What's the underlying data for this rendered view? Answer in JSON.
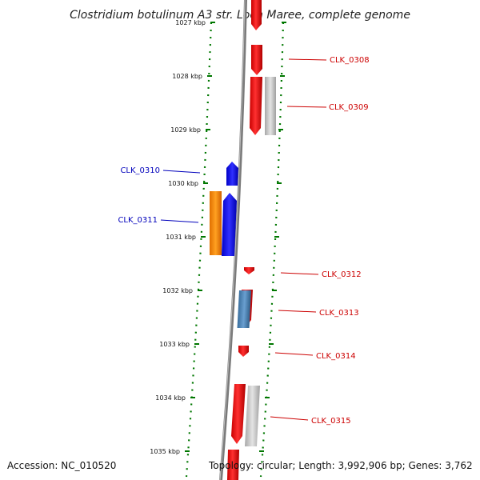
{
  "title": "Clostridium botulinum A3 str. Loch Maree, complete genome",
  "rulers": [
    "1027 kbp",
    "1028 kbp",
    "1029 kbp",
    "1030 kbp",
    "1031 kbp",
    "1032 kbp",
    "1033 kbp",
    "1034 kbp",
    "1035 kbp"
  ],
  "genes": [
    {
      "id": "CLK_0308",
      "color": "#cc0000"
    },
    {
      "id": "CLK_0309",
      "color": "#cc0000"
    },
    {
      "id": "CLK_0310",
      "color": "#0000bb"
    },
    {
      "id": "CLK_0311",
      "color": "#0000bb"
    },
    {
      "id": "CLK_0312",
      "color": "#cc0000"
    },
    {
      "id": "CLK_0313",
      "color": "#cc0000"
    },
    {
      "id": "CLK_0314",
      "color": "#cc0000"
    },
    {
      "id": "CLK_0315",
      "color": "#cc0000"
    }
  ],
  "feature_colors": {
    "red": "#ff0000",
    "grey": "#c0c0c0",
    "blue": "#0000ff",
    "orange": "#ff8c00",
    "steelblue": "#4682b4",
    "track": "#808080",
    "ruler": "#007700"
  },
  "footer": {
    "accession": "Accession: NC_010520",
    "summary": "Topology: circular; Length: 3,992,906 bp; Genes: 3,762"
  }
}
